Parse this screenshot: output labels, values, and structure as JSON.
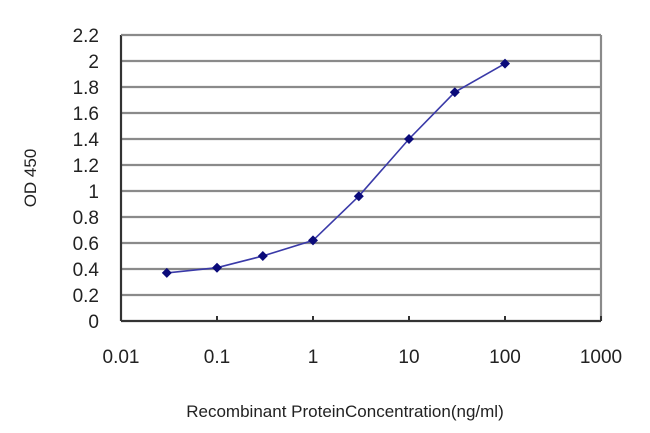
{
  "chart_data": {
    "type": "line",
    "title": "",
    "xlabel": "Recombinant ProteinConcentration(ng/ml)",
    "ylabel": "OD 450",
    "xscale": "log",
    "xlim": [
      0.01,
      1000
    ],
    "ylim": [
      0,
      2.2
    ],
    "x_ticks": [
      "0.01",
      "0.1",
      "1",
      "10",
      "100",
      "1000"
    ],
    "y_ticks": [
      "0",
      "0.2",
      "0.4",
      "0.6",
      "0.8",
      "1",
      "1.2",
      "1.4",
      "1.6",
      "1.8",
      "2",
      "2.2"
    ],
    "grid": "horizontal",
    "legend": null,
    "series": [
      {
        "name": "OD 450",
        "x": [
          0.03,
          0.1,
          0.3,
          1,
          3,
          10,
          30,
          100
        ],
        "values": [
          0.37,
          0.41,
          0.5,
          0.62,
          0.96,
          1.4,
          1.76,
          1.98
        ],
        "color": "#1a1a8c",
        "marker": "diamond"
      }
    ]
  },
  "colors": {
    "gridline": "#8a8a8a",
    "axis": "#333333",
    "line": "#3a3aa8",
    "marker": "#0b0b7a"
  }
}
